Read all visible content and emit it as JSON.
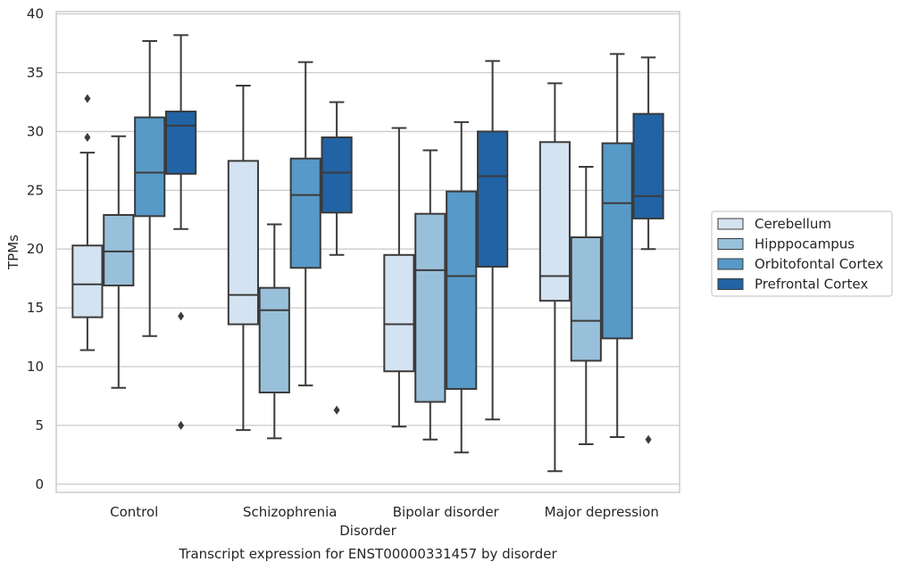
{
  "chart_data": {
    "type": "box",
    "title": "Transcript expression for ENST00000331457 by disorder",
    "xlabel": "Disorder",
    "ylabel": "TPMs",
    "ylim": [
      -0.7,
      40.2
    ],
    "yticks": [
      0,
      5,
      10,
      15,
      20,
      25,
      30,
      35,
      40
    ],
    "grid": true,
    "legend_position": "right",
    "categories": [
      "Control",
      "Schizophrenia",
      "Bipolar disorder",
      "Major depression"
    ],
    "series": [
      {
        "name": "Cerebellum",
        "color": "#d4e3f1",
        "boxes": [
          {
            "whislo": 11.4,
            "q1": 14.2,
            "med": 17.0,
            "q3": 20.3,
            "whishi": 28.2,
            "fliers": [
              29.5,
              32.8
            ]
          },
          {
            "whislo": 4.6,
            "q1": 13.6,
            "med": 16.1,
            "q3": 27.5,
            "whishi": 33.9,
            "fliers": []
          },
          {
            "whislo": 4.9,
            "q1": 9.6,
            "med": 13.6,
            "q3": 19.5,
            "whishi": 30.3,
            "fliers": []
          },
          {
            "whislo": 1.1,
            "q1": 15.6,
            "med": 17.7,
            "q3": 29.1,
            "whishi": 34.1,
            "fliers": []
          }
        ]
      },
      {
        "name": "Hipppocampus",
        "color": "#99c0da",
        "boxes": [
          {
            "whislo": 8.2,
            "q1": 16.9,
            "med": 19.8,
            "q3": 22.9,
            "whishi": 29.6,
            "fliers": []
          },
          {
            "whislo": 3.9,
            "q1": 7.8,
            "med": 14.8,
            "q3": 16.7,
            "whishi": 22.1,
            "fliers": []
          },
          {
            "whislo": 3.8,
            "q1": 7.0,
            "med": 18.2,
            "q3": 23.0,
            "whishi": 28.4,
            "fliers": []
          },
          {
            "whislo": 3.4,
            "q1": 10.5,
            "med": 13.9,
            "q3": 21.0,
            "whishi": 27.0,
            "fliers": []
          }
        ]
      },
      {
        "name": "Orbitofontal Cortex",
        "color": "#5799c7",
        "boxes": [
          {
            "whislo": 12.6,
            "q1": 22.8,
            "med": 26.5,
            "q3": 31.2,
            "whishi": 37.7,
            "fliers": []
          },
          {
            "whislo": 8.4,
            "q1": 18.4,
            "med": 24.6,
            "q3": 27.7,
            "whishi": 35.9,
            "fliers": []
          },
          {
            "whislo": 2.7,
            "q1": 8.1,
            "med": 17.7,
            "q3": 24.9,
            "whishi": 30.8,
            "fliers": []
          },
          {
            "whislo": 4.0,
            "q1": 12.4,
            "med": 23.9,
            "q3": 29.0,
            "whishi": 36.6,
            "fliers": []
          }
        ]
      },
      {
        "name": "Prefrontal Cortex",
        "color": "#2163a5",
        "boxes": [
          {
            "whislo": 21.7,
            "q1": 26.4,
            "med": 30.5,
            "q3": 31.7,
            "whishi": 38.2,
            "fliers": [
              14.3,
              5.0
            ]
          },
          {
            "whislo": 19.5,
            "q1": 23.1,
            "med": 26.5,
            "q3": 29.5,
            "whishi": 32.5,
            "fliers": [
              6.3
            ]
          },
          {
            "whislo": 5.5,
            "q1": 18.5,
            "med": 26.2,
            "q3": 30.0,
            "whishi": 36.0,
            "fliers": []
          },
          {
            "whislo": 20.0,
            "q1": 22.6,
            "med": 24.5,
            "q3": 31.5,
            "whishi": 36.3,
            "fliers": [
              3.8
            ]
          }
        ]
      }
    ]
  }
}
